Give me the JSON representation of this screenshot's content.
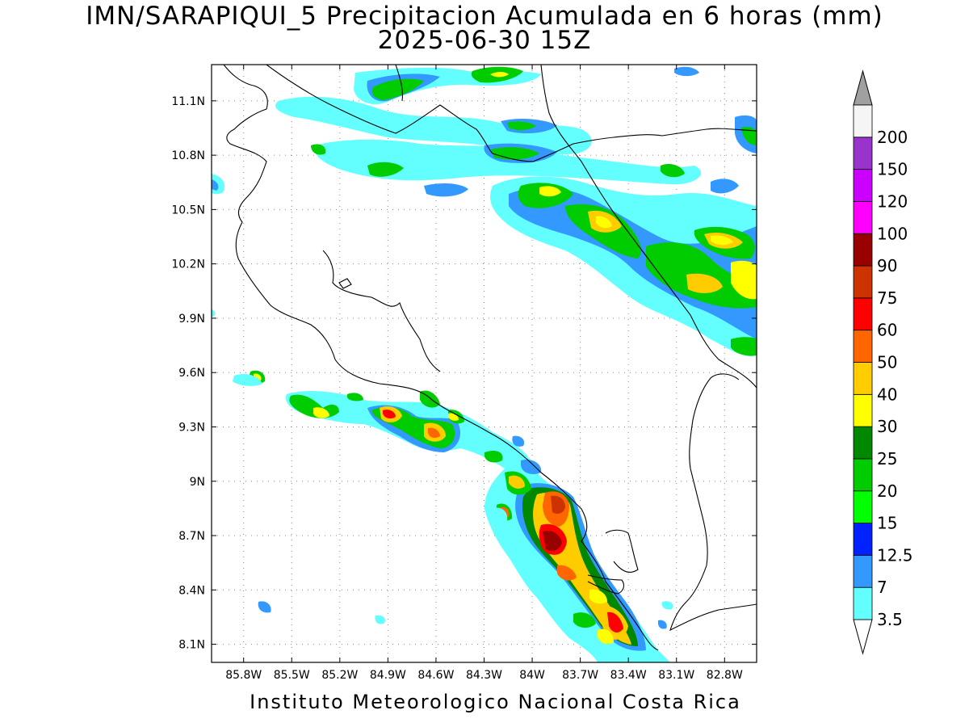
{
  "title": "IMN/SARAPIQUI_5 Precipitacion Acumulada en 6 horas (mm)",
  "subtitle": "2025-06-30 15Z",
  "footer": "Instituto Meteorologico Nacional Costa Rica",
  "map": {
    "lon_range": [
      -86.0,
      -82.6
    ],
    "lat_range": [
      8.0,
      11.3
    ],
    "lat_ticks": [
      "11.1N",
      "10.8N",
      "10.5N",
      "10.2N",
      "9.9N",
      "9.6N",
      "9.3N",
      "9N",
      "8.7N",
      "8.4N",
      "8.1N"
    ],
    "lat_values": [
      11.1,
      10.8,
      10.5,
      10.2,
      9.9,
      9.6,
      9.3,
      9.0,
      8.7,
      8.4,
      8.1
    ],
    "lon_ticks": [
      "85.8W",
      "85.5W",
      "85.2W",
      "84.9W",
      "84.6W",
      "84.3W",
      "84W",
      "83.7W",
      "83.4W",
      "83.1W",
      "82.8W"
    ],
    "lon_values": [
      -85.8,
      -85.5,
      -85.2,
      -84.9,
      -84.6,
      -84.3,
      -84.0,
      -83.7,
      -83.4,
      -83.1,
      -82.8
    ],
    "grid": true
  },
  "colorbar": {
    "levels": [
      "3.5",
      "7",
      "12.5",
      "15",
      "20",
      "25",
      "30",
      "40",
      "50",
      "60",
      "75",
      "90",
      "100",
      "120",
      "150",
      "200"
    ],
    "colors": [
      "#63ffff",
      "#3399ff",
      "#0022ff",
      "#00ff00",
      "#00cc00",
      "#008800",
      "#ffff00",
      "#ffcc00",
      "#ff6600",
      "#ff0000",
      "#cc3300",
      "#990000",
      "#ff00ff",
      "#cc00ff",
      "#9933cc",
      "#f5f5f5"
    ],
    "top_arrow_color": "#a0a0a0",
    "bottom_arrow_color": "#ffffff"
  }
}
